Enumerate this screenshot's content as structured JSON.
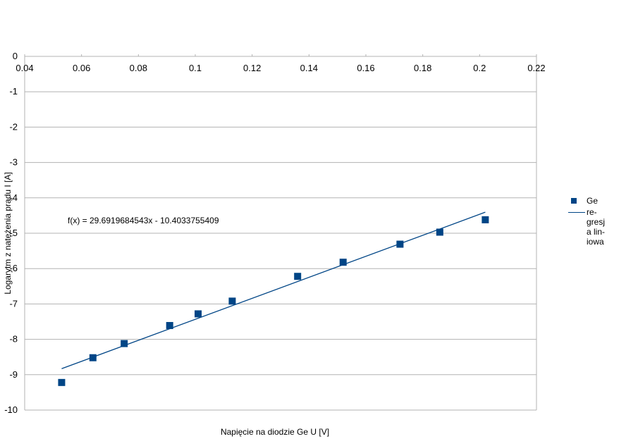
{
  "chart_data": {
    "type": "scatter",
    "xlabel": "Napięcie na diodzie Ge U [V]",
    "ylabel": "Logarytm z natężenia prądu I [A]",
    "xlim": [
      0.04,
      0.22
    ],
    "ylim": [
      -10,
      0
    ],
    "x_ticks": [
      "0.04",
      "0.06",
      "0.08",
      "0.1",
      "0.12",
      "0.14",
      "0.16",
      "0.18",
      "0.2",
      "0.22"
    ],
    "y_ticks": [
      "0",
      "-1",
      "-2",
      "-3",
      "-4",
      "-5",
      "-6",
      "-7",
      "-8",
      "-9",
      "-10"
    ],
    "grid": true,
    "legend_position": "right",
    "color": "#004586",
    "series": [
      {
        "name": "Ge",
        "points": [
          {
            "x": 0.053,
            "y": -9.22
          },
          {
            "x": 0.064,
            "y": -8.52
          },
          {
            "x": 0.075,
            "y": -8.12
          },
          {
            "x": 0.091,
            "y": -7.61
          },
          {
            "x": 0.101,
            "y": -7.28
          },
          {
            "x": 0.113,
            "y": -6.92
          },
          {
            "x": 0.136,
            "y": -6.22
          },
          {
            "x": 0.152,
            "y": -5.82
          },
          {
            "x": 0.172,
            "y": -5.31
          },
          {
            "x": 0.186,
            "y": -4.97
          },
          {
            "x": 0.202,
            "y": -4.62
          }
        ]
      }
    ],
    "trendline": {
      "name": "regresja liniowa",
      "slope": 29.6919684543,
      "intercept": -10.4033755409,
      "x_range": [
        0.053,
        0.202
      ],
      "equation": "f(x) = 29.6919684543x - 10.4033755409"
    },
    "legend_labels": [
      "Ge",
      "re-\ngresj\na lin-\niowa"
    ]
  }
}
